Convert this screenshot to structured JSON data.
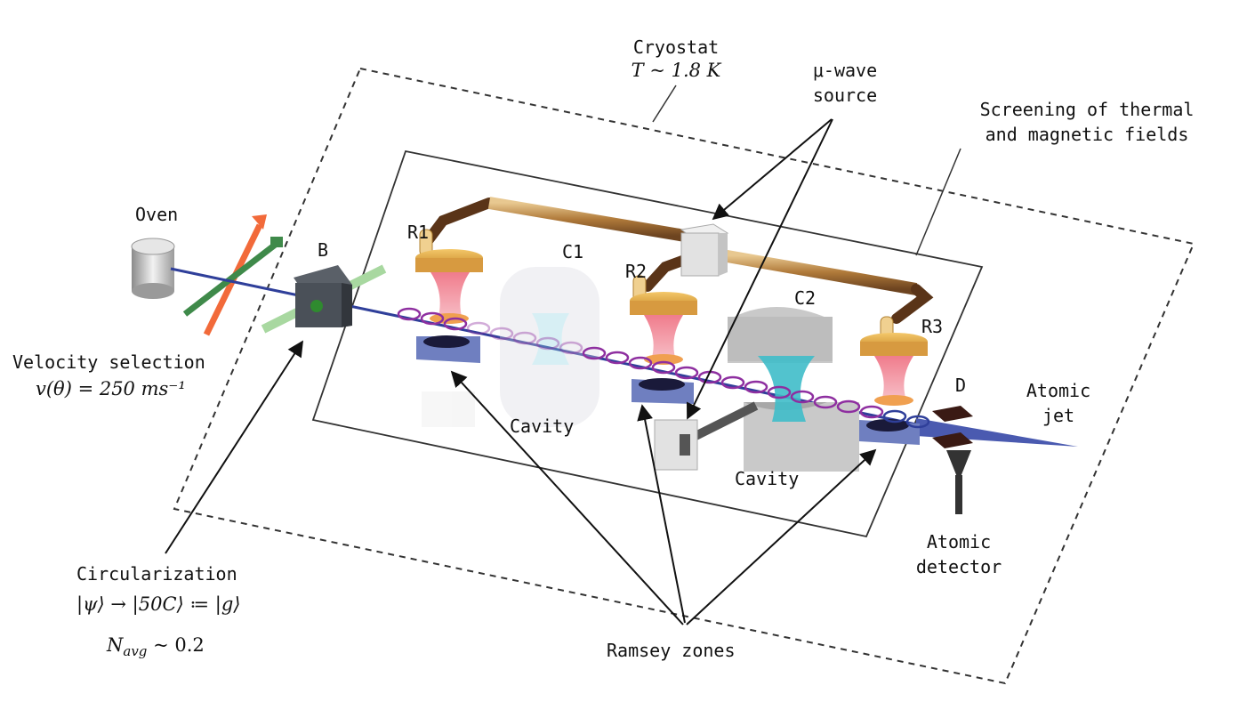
{
  "labels": {
    "cryostat_title": "Cryostat",
    "cryostat_temp": "T ~ 1.8 K",
    "mu_wave_line1": "μ-wave",
    "mu_wave_line2": "source",
    "screening_line1": "Screening of thermal",
    "screening_line2": "and magnetic fields",
    "oven": "Oven",
    "b": "B",
    "r1": "R1",
    "c1": "C1",
    "r2": "R2",
    "c2": "C2",
    "r3": "R3",
    "d": "D",
    "atomic_jet_line1": "Atomic",
    "atomic_jet_line2": "jet",
    "velocity_selection": "Velocity selection",
    "velocity_formula": "v(θ) = 250 ms⁻¹",
    "cavity_left": "Cavity",
    "cavity_right": "Cavity",
    "atomic_detector_line1": "Atomic",
    "atomic_detector_line2": "detector",
    "circularization": "Circularization",
    "circularization_formula": "|ψ⟩ → |50C⟩ ≔ |g⟩",
    "n_avg": "N",
    "n_avg_sub": "avg",
    "n_avg_value": " ~ 0.2",
    "ramsey_zones": "Ramsey zones"
  },
  "colors": {
    "beam": "#2f3f9a",
    "copper": "#b07a3a",
    "copper_dark": "#5a3418",
    "ramsey_gold": "#e3a640",
    "field_red": "#e86a7a",
    "mirror_blue": "#6f7fc0",
    "cavity_grey": "#c9c9c9",
    "mode_cyan": "#3fbcc9",
    "ring_purple": "#8e2fa0",
    "laser_orange": "#f26a3a",
    "laser_green": "#3f8a4a"
  }
}
